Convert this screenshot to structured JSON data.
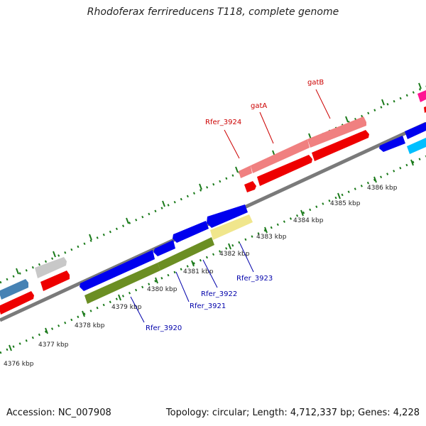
{
  "title": "Rhodoferax ferrireducens T118, complete genome",
  "footer": {
    "accession": "Accession: NC_007908",
    "summary": "Topology: circular; Length: 4,712,337 bp; Genes: 4,228"
  },
  "axis_labels": [
    "4376 kbp",
    "4377 kbp",
    "4378 kbp",
    "4379 kbp",
    "4380 kbp",
    "4381 kbp",
    "4382 kbp",
    "4383 kbp",
    "4384 kbp",
    "4385 kbp",
    "4386 kbp"
  ],
  "gene_labels_top": [
    {
      "text": "Rfer_3924",
      "color": "#cc0000"
    },
    {
      "text": "gatA",
      "color": "#cc0000"
    },
    {
      "text": "gatB",
      "color": "#cc0000"
    }
  ],
  "gene_labels_bottom": [
    {
      "text": "Rfer_3920",
      "color": "#0000aa"
    },
    {
      "text": "Rfer_3921",
      "color": "#0000aa"
    },
    {
      "text": "Rfer_3922",
      "color": "#0000aa"
    },
    {
      "text": "Rfer_3923",
      "color": "#0000aa"
    }
  ],
  "colors": {
    "forward_cds": "#ff0000",
    "forward_highlight": "#f08080",
    "reverse_cds": "#0000ee",
    "reverse_highlight_green": "#6b8e23",
    "reverse_highlight_yellow": "#f0e68c",
    "backbone": "#808080",
    "ticks": "#1a7a1a",
    "steelblue": "#4682b4",
    "grey_feature": "#c0c0c0",
    "cyan_feature": "#00bfff",
    "magenta_feature": "#ff1493"
  }
}
